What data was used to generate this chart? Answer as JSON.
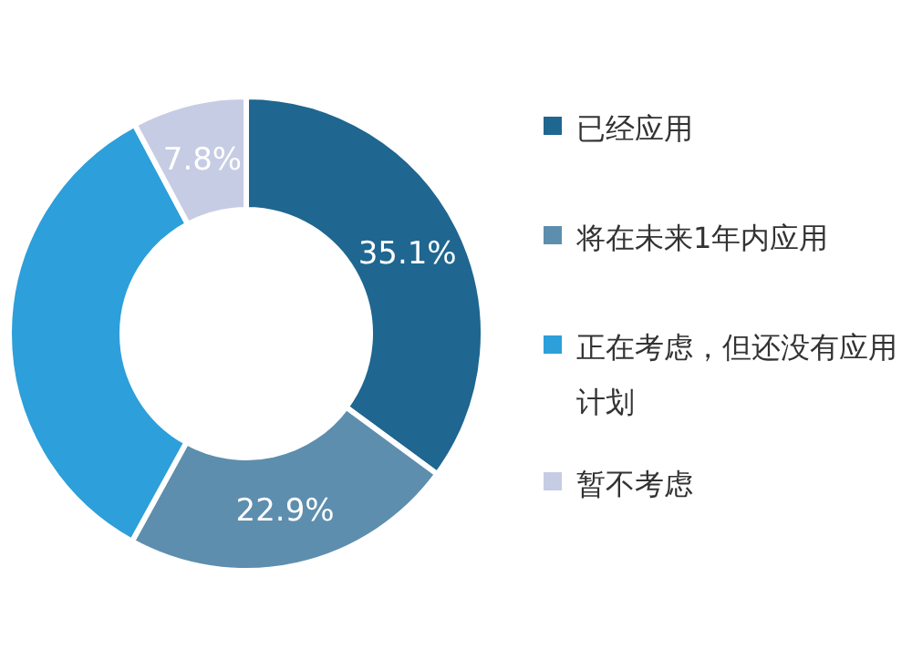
{
  "chart_data": {
    "type": "donut",
    "categories": [
      "已经应用",
      "将在未来1年内应用",
      "正在考虑，但还没有应用计划",
      "暂不考虑"
    ],
    "values": [
      35.1,
      22.9,
      34.2,
      7.8
    ],
    "colors": [
      "#1f6690",
      "#5e8eae",
      "#2d9fda",
      "#c6cce3"
    ],
    "value_labels": [
      "35.1%",
      "22.9%",
      null,
      "7.8%"
    ],
    "legend": "right"
  }
}
